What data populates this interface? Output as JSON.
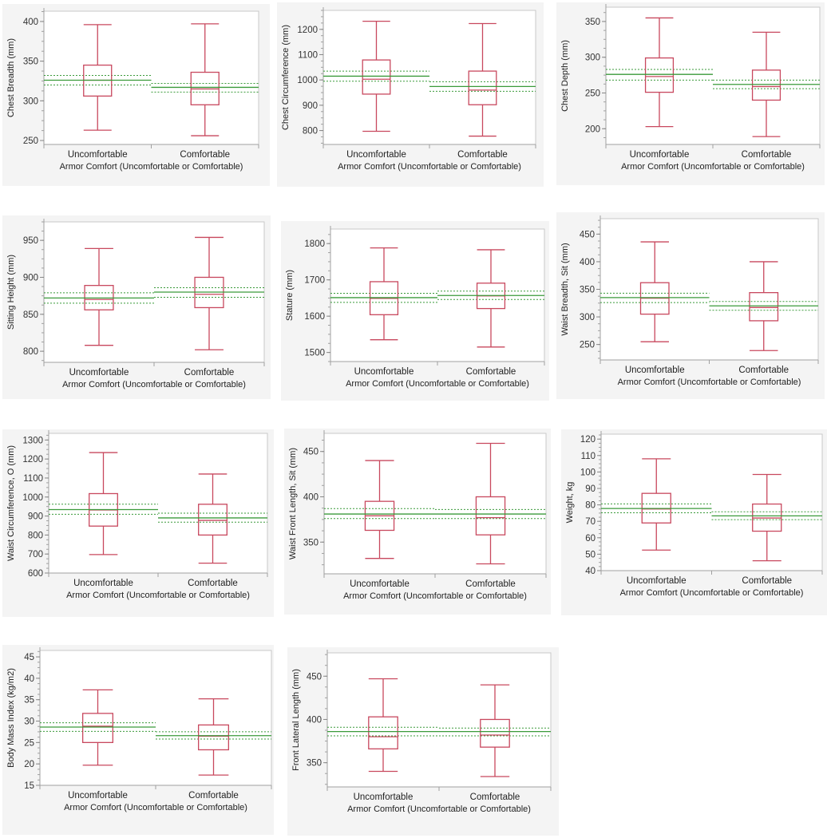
{
  "colors": {
    "box": "#c8485e",
    "mean_line": "#3a9a3a",
    "ci_line": "#3a9a3a",
    "axis": "#a0a0a0",
    "panel_bg": "#f4f4f4",
    "plot_bg": "#ffffff"
  },
  "chart_data": [
    {
      "type": "box",
      "ylabel": "Chest Breadth (mm)",
      "xlabel": "Armor Comfort (Uncomfortable or Comfortable)",
      "categories": [
        "Uncomfortable",
        "Comfortable"
      ],
      "ylim": [
        245,
        413
      ],
      "yticks": [
        250,
        300,
        350,
        400
      ],
      "boxes": [
        {
          "whisker_low": 263,
          "q1": 306,
          "median": 326,
          "q3": 345,
          "whisker_high": 396,
          "mean": 326,
          "ci_low": 320,
          "ci_high": 332
        },
        {
          "whisker_low": 256,
          "q1": 295,
          "median": 315,
          "q3": 336,
          "whisker_high": 397,
          "mean": 317,
          "ci_low": 311,
          "ci_high": 322
        }
      ]
    },
    {
      "type": "box",
      "ylabel": "Chest Circumference (mm)",
      "xlabel": "Armor Comfort (Uncomfortable or Comfortable)",
      "categories": [
        "Uncomfortable",
        "Comfortable"
      ],
      "ylim": [
        745,
        1275
      ],
      "yticks": [
        800,
        900,
        1000,
        1100,
        1200
      ],
      "boxes": [
        {
          "whisker_low": 797,
          "q1": 944,
          "median": 1003,
          "q3": 1079,
          "whisker_high": 1232,
          "mean": 1015,
          "ci_low": 995,
          "ci_high": 1035
        },
        {
          "whisker_low": 778,
          "q1": 902,
          "median": 960,
          "q3": 1035,
          "whisker_high": 1223,
          "mean": 974,
          "ci_low": 955,
          "ci_high": 993
        }
      ]
    },
    {
      "type": "box",
      "ylabel": "Chest Depth (mm)",
      "xlabel": "Armor Comfort (Uncomfortable or Comfortable)",
      "categories": [
        "Uncomfortable",
        "Comfortable"
      ],
      "ylim": [
        178,
        370
      ],
      "yticks": [
        200,
        250,
        300,
        350
      ],
      "boxes": [
        {
          "whisker_low": 203,
          "q1": 251,
          "median": 273,
          "q3": 299,
          "whisker_high": 355,
          "mean": 276,
          "ci_low": 268,
          "ci_high": 283
        },
        {
          "whisker_low": 189,
          "q1": 240,
          "median": 259,
          "q3": 282,
          "whisker_high": 335,
          "mean": 262,
          "ci_low": 256,
          "ci_high": 268
        }
      ]
    },
    {
      "type": "box",
      "ylabel": "Sitting Height (mm)",
      "xlabel": "Armor Comfort (Uncomfortable or Comfortable)",
      "categories": [
        "Uncomfortable",
        "Comfortable"
      ],
      "ylim": [
        785,
        975
      ],
      "yticks": [
        800,
        850,
        900,
        950
      ],
      "boxes": [
        {
          "whisker_low": 808,
          "q1": 856,
          "median": 870,
          "q3": 889,
          "whisker_high": 939,
          "mean": 872,
          "ci_low": 865,
          "ci_high": 879
        },
        {
          "whisker_low": 802,
          "q1": 859,
          "median": 877,
          "q3": 900,
          "whisker_high": 954,
          "mean": 880,
          "ci_low": 873,
          "ci_high": 886
        }
      ]
    },
    {
      "type": "box",
      "ylabel": "Stature (mm)",
      "xlabel": "Armor Comfort (Uncomfortable or Comfortable)",
      "categories": [
        "Uncomfortable",
        "Comfortable"
      ],
      "ylim": [
        1475,
        1840
      ],
      "yticks": [
        1500,
        1600,
        1700,
        1800
      ],
      "boxes": [
        {
          "whisker_low": 1535,
          "q1": 1604,
          "median": 1649,
          "q3": 1695,
          "whisker_high": 1788,
          "mean": 1651,
          "ci_low": 1638,
          "ci_high": 1663
        },
        {
          "whisker_low": 1515,
          "q1": 1621,
          "median": 1656,
          "q3": 1691,
          "whisker_high": 1783,
          "mean": 1657,
          "ci_low": 1646,
          "ci_high": 1669
        }
      ]
    },
    {
      "type": "box",
      "ylabel": "Waist Breadth, Sit (mm)",
      "xlabel": "Armor Comfort (Uncomfortable or Comfortable)",
      "categories": [
        "Uncomfortable",
        "Comfortable"
      ],
      "ylim": [
        222,
        478
      ],
      "yticks": [
        250,
        300,
        350,
        400,
        450
      ],
      "boxes": [
        {
          "whisker_low": 255,
          "q1": 305,
          "median": 334,
          "q3": 362,
          "whisker_high": 436,
          "mean": 335,
          "ci_low": 326,
          "ci_high": 343
        },
        {
          "whisker_low": 239,
          "q1": 293,
          "median": 317,
          "q3": 344,
          "whisker_high": 400,
          "mean": 320,
          "ci_low": 312,
          "ci_high": 328
        }
      ]
    },
    {
      "type": "box",
      "ylabel": "Waist Circumference, O (mm)",
      "xlabel": "Armor Comfort (Uncomfortable or Comfortable)",
      "categories": [
        "Uncomfortable",
        "Comfortable"
      ],
      "ylim": [
        600,
        1335
      ],
      "yticks": [
        600,
        700,
        800,
        900,
        1000,
        1100,
        1200,
        1300
      ],
      "boxes": [
        {
          "whisker_low": 697,
          "q1": 847,
          "median": 932,
          "q3": 1018,
          "whisker_high": 1234,
          "mean": 934,
          "ci_low": 909,
          "ci_high": 962
        },
        {
          "whisker_low": 652,
          "q1": 800,
          "median": 877,
          "q3": 962,
          "whisker_high": 1121,
          "mean": 890,
          "ci_low": 868,
          "ci_high": 915
        }
      ]
    },
    {
      "type": "box",
      "ylabel": "Waist Front Length, Sit (mm)",
      "xlabel": "Armor Comfort (Uncomfortable or Comfortable)",
      "categories": [
        "Uncomfortable",
        "Comfortable"
      ],
      "ylim": [
        315,
        470
      ],
      "yticks": [
        350,
        400,
        450
      ],
      "boxes": [
        {
          "whisker_low": 332,
          "q1": 363,
          "median": 379,
          "q3": 395,
          "whisker_high": 440,
          "mean": 381,
          "ci_low": 376,
          "ci_high": 387
        },
        {
          "whisker_low": 326,
          "q1": 358,
          "median": 377,
          "q3": 400,
          "whisker_high": 459,
          "mean": 381,
          "ci_low": 376,
          "ci_high": 386
        }
      ]
    },
    {
      "type": "box",
      "ylabel": "Weight, kg",
      "xlabel": "Armor Comfort (Uncomfortable or Comfortable)",
      "categories": [
        "Uncomfortable",
        "Comfortable"
      ],
      "ylim": [
        40,
        123
      ],
      "yticks": [
        40,
        50,
        60,
        70,
        80,
        90,
        100,
        110,
        120
      ],
      "boxes": [
        {
          "whisker_low": 52.5,
          "q1": 69,
          "median": 77.5,
          "q3": 87,
          "whisker_high": 108,
          "mean": 77.8,
          "ci_low": 75.2,
          "ci_high": 80.6
        },
        {
          "whisker_low": 46,
          "q1": 64,
          "median": 72,
          "q3": 80.5,
          "whisker_high": 98.5,
          "mean": 73.3,
          "ci_low": 71,
          "ci_high": 75.8
        }
      ]
    },
    {
      "type": "box",
      "ylabel": "Body Mass Index (kg/m2)",
      "xlabel": "Armor Comfort (Uncomfortable or Comfortable)",
      "categories": [
        "Uncomfortable",
        "Comfortable"
      ],
      "ylim": [
        15,
        46.5
      ],
      "yticks": [
        15,
        20,
        25,
        30,
        35,
        40,
        45
      ],
      "boxes": [
        {
          "whisker_low": 19.7,
          "q1": 25,
          "median": 28.8,
          "q3": 31.8,
          "whisker_high": 37.3,
          "mean": 28.6,
          "ci_low": 27.6,
          "ci_high": 29.6
        },
        {
          "whisker_low": 17.4,
          "q1": 23.3,
          "median": 26.5,
          "q3": 29.1,
          "whisker_high": 35.2,
          "mean": 26.6,
          "ci_low": 25.8,
          "ci_high": 27.5
        }
      ]
    },
    {
      "type": "box",
      "ylabel": "Front Lateral Length (mm)",
      "xlabel": "Armor Comfort (Uncomfortable or Comfortable)",
      "categories": [
        "Uncomfortable",
        "Comfortable"
      ],
      "ylim": [
        322,
        477
      ],
      "yticks": [
        350,
        400,
        450
      ],
      "boxes": [
        {
          "whisker_low": 340,
          "q1": 366,
          "median": 380,
          "q3": 403,
          "whisker_high": 447,
          "mean": 386,
          "ci_low": 381,
          "ci_high": 391
        },
        {
          "whisker_low": 334,
          "q1": 368,
          "median": 382,
          "q3": 400,
          "whisker_high": 440,
          "mean": 386,
          "ci_low": 381,
          "ci_high": 390
        }
      ]
    }
  ]
}
